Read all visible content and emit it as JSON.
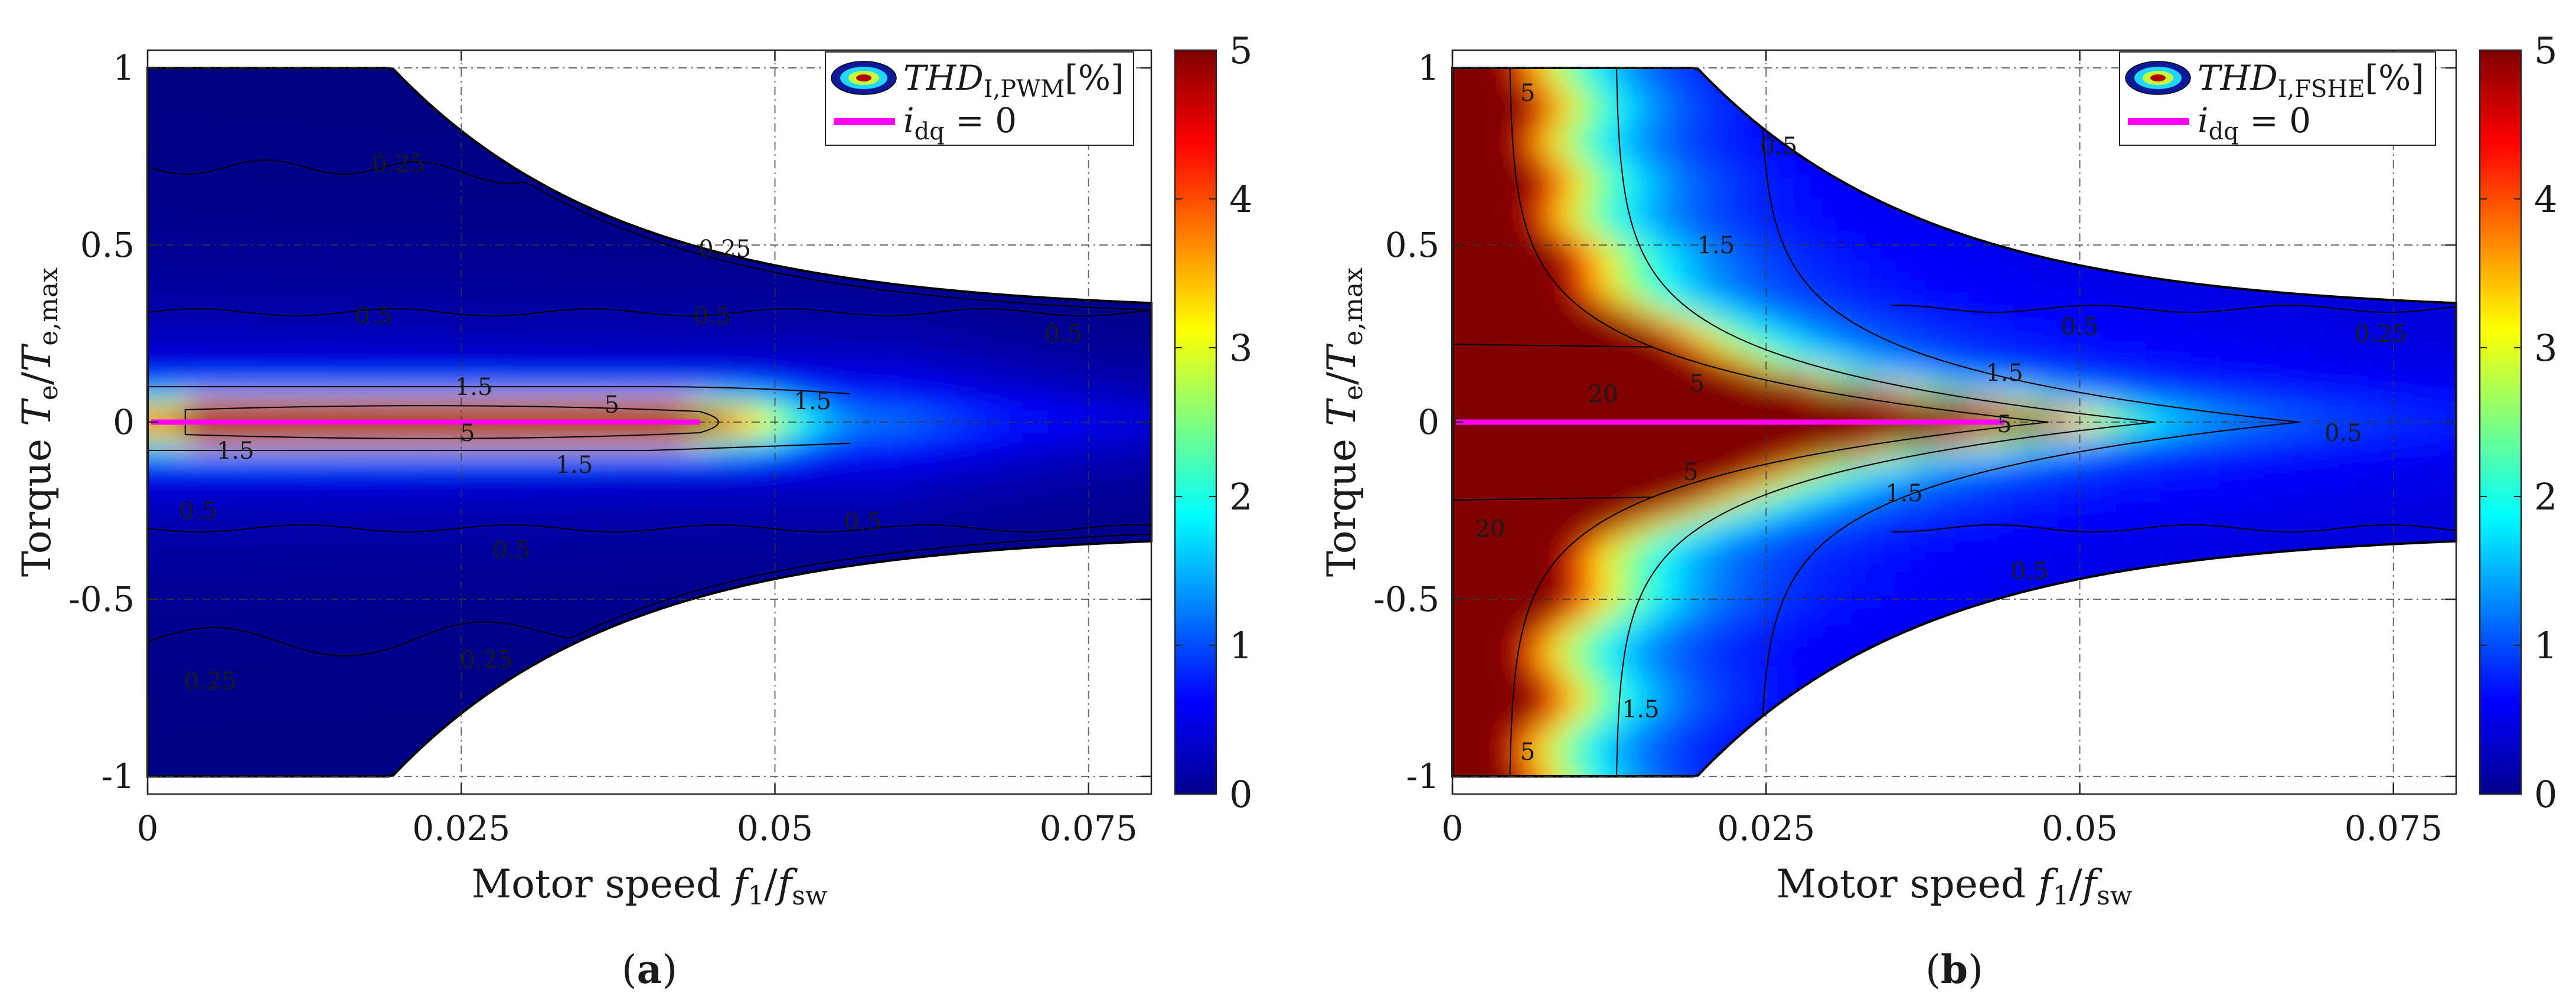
{
  "chart_data": [
    {
      "type": "heatmap",
      "panel": "(a)",
      "caption_label": "a",
      "xlabel": "Motor speed f₁/f_sw",
      "ylabel": "Torque Tₑ/Tₑ,max",
      "xlim": [
        0,
        0.08
      ],
      "ylim": [
        -1.05,
        1.05
      ],
      "xticks": [
        0,
        0.025,
        0.05,
        0.075
      ],
      "xtick_labels": [
        "0",
        "0.025",
        "0.05",
        "0.075"
      ],
      "yticks": [
        -1,
        -0.5,
        0,
        0.5,
        1
      ],
      "ytick_labels": [
        "-1",
        "-0.5",
        "0",
        "0.5",
        "1"
      ],
      "colorbar": {
        "min": 0,
        "max": 5,
        "ticks": [
          0,
          1,
          2,
          3,
          4,
          5
        ],
        "tick_labels": [
          "0",
          "1",
          "2",
          "3",
          "4",
          "5"
        ],
        "colormap": "jet"
      },
      "legend": {
        "position": "top-right",
        "entries": [
          "THD I,PWM [%]",
          "i_dq = 0"
        ],
        "line_color": "#ff00ff"
      },
      "zero_current_line": {
        "x_start": 0,
        "x_end": 0.044,
        "y": 0,
        "color": "#ff00ff"
      },
      "contour_labels": [
        {
          "text": "0.25",
          "x": 0.02,
          "y": 0.73
        },
        {
          "text": "0.25",
          "x": 0.046,
          "y": 0.49
        },
        {
          "text": "0.5",
          "x": 0.018,
          "y": 0.3
        },
        {
          "text": "0.5",
          "x": 0.045,
          "y": 0.3
        },
        {
          "text": "0.5",
          "x": 0.073,
          "y": 0.25
        },
        {
          "text": "1.5",
          "x": 0.026,
          "y": 0.1
        },
        {
          "text": "1.5",
          "x": 0.053,
          "y": 0.06
        },
        {
          "text": "5",
          "x": 0.037,
          "y": 0.05
        },
        {
          "text": "5",
          "x": 0.0255,
          "y": -0.03
        },
        {
          "text": "1.5",
          "x": 0.007,
          "y": -0.08
        },
        {
          "text": "1.5",
          "x": 0.034,
          "y": -0.12
        },
        {
          "text": "0.5",
          "x": 0.004,
          "y": -0.25
        },
        {
          "text": "0.5",
          "x": 0.029,
          "y": -0.36
        },
        {
          "text": "0.5",
          "x": 0.057,
          "y": -0.28
        },
        {
          "text": "0.25",
          "x": 0.005,
          "y": -0.73
        },
        {
          "text": "0.25",
          "x": 0.027,
          "y": -0.67
        }
      ]
    },
    {
      "type": "heatmap",
      "panel": "(b)",
      "caption_label": "b",
      "xlabel": "Motor speed f₁/f_sw",
      "ylabel": "Torque Tₑ/Tₑ,max",
      "xlim": [
        0,
        0.08
      ],
      "ylim": [
        -1.05,
        1.05
      ],
      "xticks": [
        0,
        0.025,
        0.05,
        0.075
      ],
      "xtick_labels": [
        "0",
        "0.025",
        "0.05",
        "0.075"
      ],
      "yticks": [
        -1,
        -0.5,
        0,
        0.5,
        1
      ],
      "ytick_labels": [
        "-1",
        "-0.5",
        "0",
        "0.5",
        "1"
      ],
      "colorbar": {
        "min": 0,
        "max": 5,
        "ticks": [
          0,
          1,
          2,
          3,
          4,
          5
        ],
        "tick_labels": [
          "0",
          "1",
          "2",
          "3",
          "4",
          "5"
        ],
        "colormap": "jet"
      },
      "legend": {
        "position": "top-right",
        "entries": [
          "THD I,FSHE [%]",
          "i_dq = 0"
        ],
        "line_color": "#ff00ff"
      },
      "zero_current_line": {
        "x_start": 0,
        "x_end": 0.044,
        "y": 0,
        "color": "#ff00ff"
      },
      "contour_labels": [
        {
          "text": "5",
          "x": 0.006,
          "y": 0.93
        },
        {
          "text": "0.5",
          "x": 0.026,
          "y": 0.78
        },
        {
          "text": "1.5",
          "x": 0.021,
          "y": 0.5
        },
        {
          "text": "0.5",
          "x": 0.05,
          "y": 0.27
        },
        {
          "text": "0.25",
          "x": 0.074,
          "y": 0.25
        },
        {
          "text": "1.5",
          "x": 0.044,
          "y": 0.14
        },
        {
          "text": "5",
          "x": 0.0195,
          "y": 0.11
        },
        {
          "text": "20",
          "x": 0.012,
          "y": 0.08
        },
        {
          "text": "5",
          "x": 0.044,
          "y": -0.005
        },
        {
          "text": "5",
          "x": 0.019,
          "y": -0.14
        },
        {
          "text": "1.5",
          "x": 0.036,
          "y": -0.2
        },
        {
          "text": "20",
          "x": 0.003,
          "y": -0.3
        },
        {
          "text": "0.5",
          "x": 0.071,
          "y": -0.03
        },
        {
          "text": "0.5",
          "x": 0.046,
          "y": -0.42
        },
        {
          "text": "1.5",
          "x": 0.015,
          "y": -0.81
        },
        {
          "text": "5",
          "x": 0.006,
          "y": -0.93
        }
      ]
    }
  ]
}
